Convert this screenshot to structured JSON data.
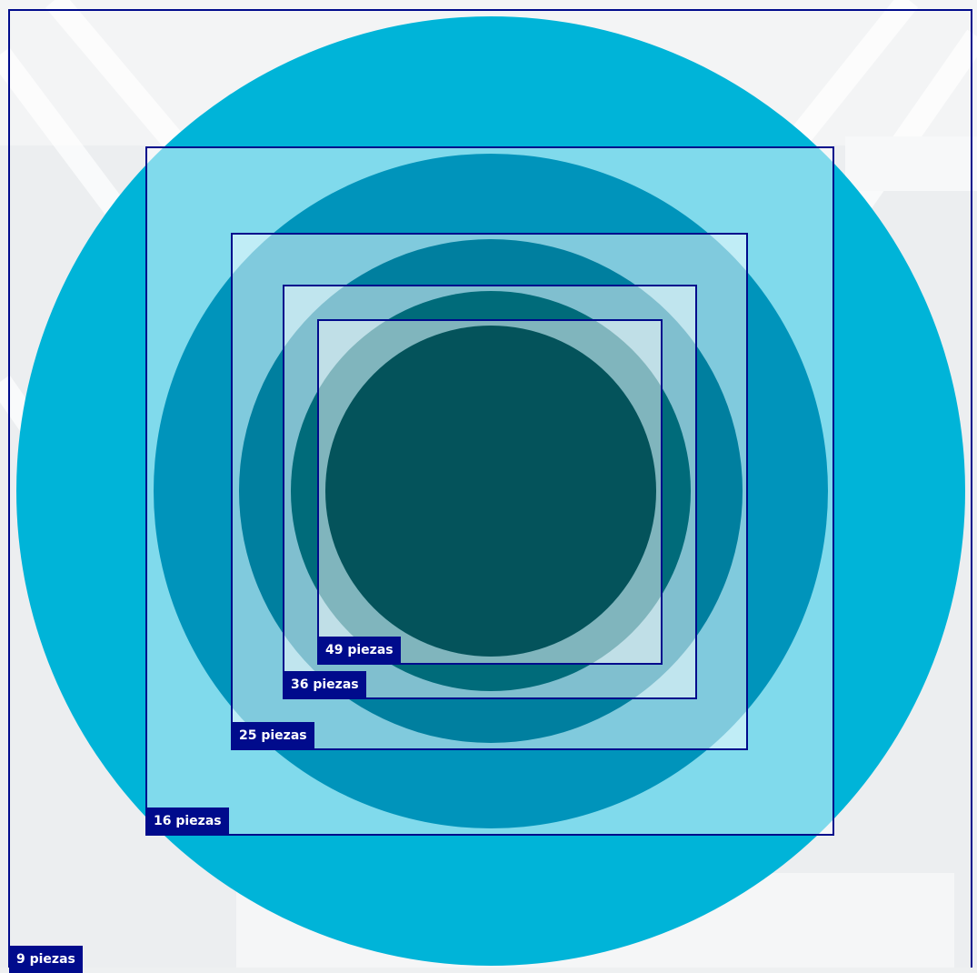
{
  "colors": {
    "frame": "#000b8c",
    "label_bg": "#000b8c",
    "label_text": "#ffffff",
    "circle_9": "#00b4d8",
    "circle_16": "#0094bb",
    "circle_25": "#007f9f",
    "circle_36": "#006b7a",
    "circle_49": "#04535b",
    "square_fill": "#ffffff"
  },
  "sizes": [
    {
      "id": "9",
      "label": "9 piezas"
    },
    {
      "id": "16",
      "label": "16 piezas"
    },
    {
      "id": "25",
      "label": "25 piezas"
    },
    {
      "id": "36",
      "label": "36 piezas"
    },
    {
      "id": "49",
      "label": "49 piezas"
    }
  ]
}
